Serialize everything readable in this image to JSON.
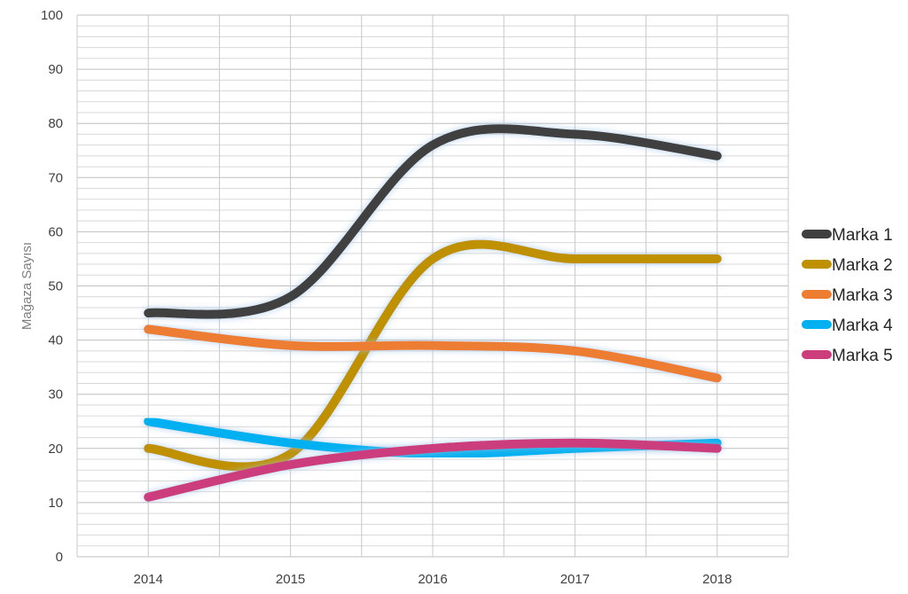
{
  "chart_data": {
    "type": "line",
    "smooth": true,
    "title": "",
    "xlabel": "",
    "ylabel": "Mağaza Sayısı",
    "categories": [
      "2014",
      "2015",
      "2016",
      "2017",
      "2018"
    ],
    "ylim": [
      0,
      100
    ],
    "y_major_step": 10,
    "y_minor_step": 2,
    "grid": true,
    "legend_position": "right",
    "series": [
      {
        "name": "Marka 1",
        "color": "#404040",
        "values": [
          45,
          48,
          76,
          78,
          74
        ]
      },
      {
        "name": "Marka 2",
        "color": "#bf9000",
        "values": [
          20,
          19,
          55,
          55,
          55
        ]
      },
      {
        "name": "Marka 3",
        "color": "#ed7d31",
        "values": [
          42,
          39,
          39,
          38,
          33
        ]
      },
      {
        "name": "Marka 4",
        "color": "#00b0f0",
        "values": [
          25,
          21,
          19,
          20,
          21
        ]
      },
      {
        "name": "Marka 5",
        "color": "#cc3d7e",
        "values": [
          11,
          17,
          20,
          21,
          20
        ]
      }
    ]
  }
}
